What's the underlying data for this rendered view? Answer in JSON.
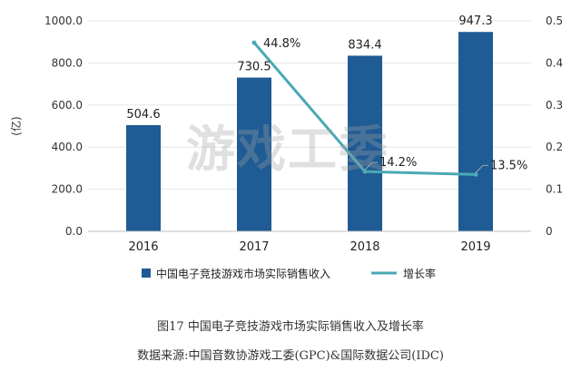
{
  "colors": {
    "bar": "#1f5b94",
    "line": "#4aa9b5",
    "grid": "#e5e5e5",
    "axis": "#bfbfbf",
    "text": "#333333"
  },
  "watermark": "游戏工委",
  "caption": {
    "title": "图17  中国电子竞技游戏市场实际销售收入及增长率",
    "source": "数据来源:中国音数协游戏工委(GPC)&国际数据公司(IDC)"
  },
  "chart_data": {
    "type": "bar",
    "categories": [
      "2016",
      "2017",
      "2018",
      "2019"
    ],
    "series": [
      {
        "name": "中国电子竞技游戏市场实际销售收入",
        "type": "bar",
        "axis": "left",
        "values": [
          504.6,
          730.5,
          834.4,
          947.3
        ],
        "labels": [
          "504.6",
          "730.5",
          "834.4",
          "947.3"
        ]
      },
      {
        "name": "增长率",
        "type": "line",
        "axis": "right",
        "values": [
          null,
          0.448,
          0.142,
          0.135
        ],
        "labels": [
          "",
          "44.8%",
          "14.2%",
          "13.5%"
        ]
      }
    ],
    "ylabel": "(亿)",
    "ylim": [
      0,
      1000
    ],
    "yticks": [
      "0.0",
      "200.0",
      "400.0",
      "600.0",
      "800.0",
      "1000.0"
    ],
    "y2lim": [
      0,
      0.5
    ],
    "y2ticks": [
      "0",
      "0.1",
      "0.2",
      "0.3",
      "0.4",
      "0.5"
    ],
    "grid": true,
    "legend": "bottom"
  }
}
